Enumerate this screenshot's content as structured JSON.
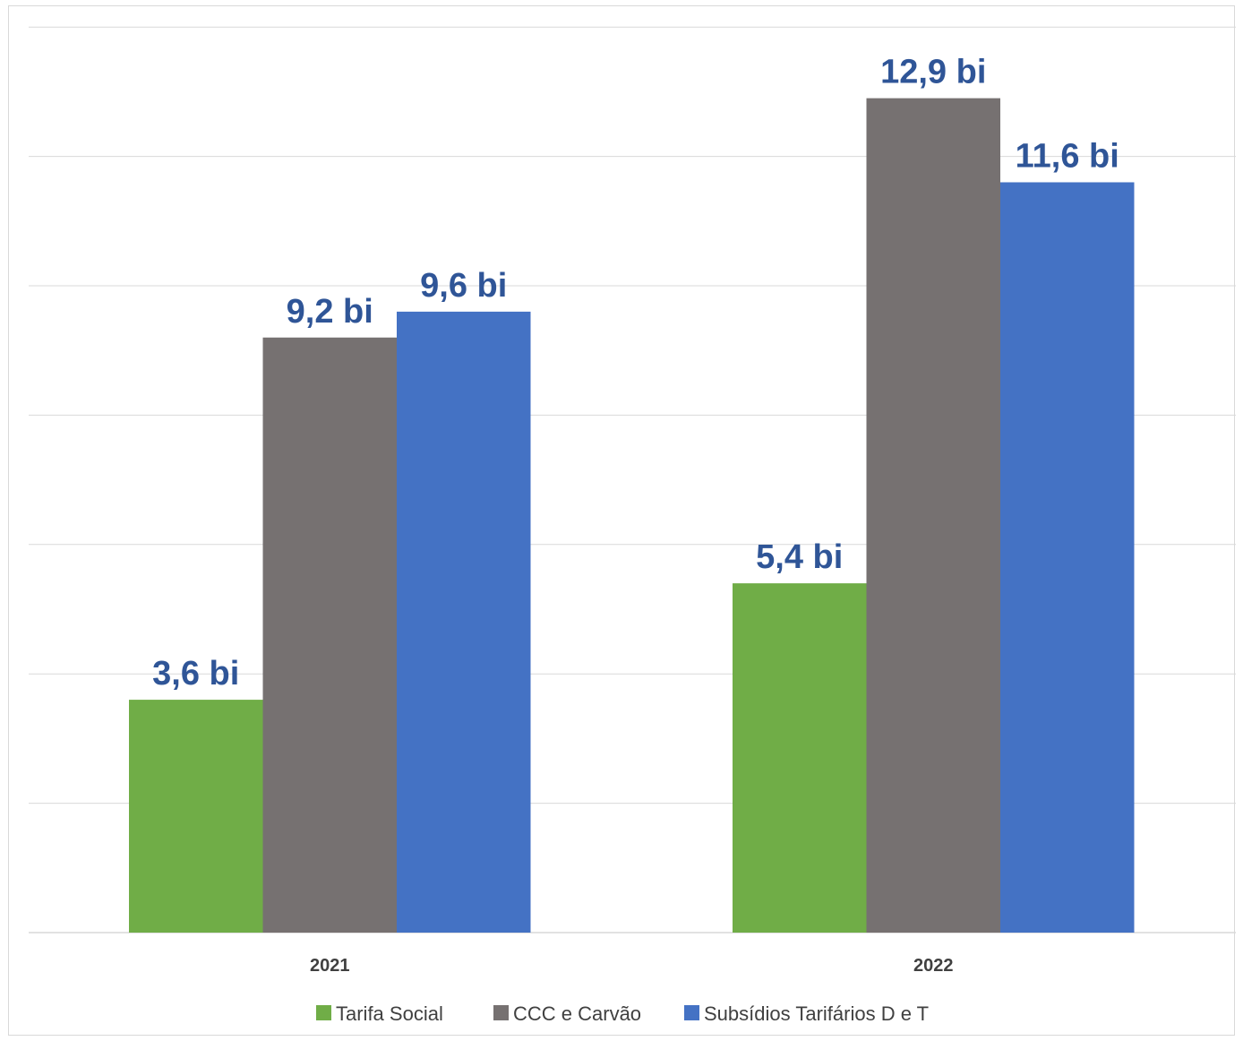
{
  "chart_data": {
    "type": "bar",
    "categories": [
      "2021",
      "2022"
    ],
    "series": [
      {
        "name": "Tarifa Social",
        "values": [
          3.6,
          5.4
        ],
        "labels": [
          "3,6 bi",
          "5,4 bi"
        ],
        "color": "#70ad47"
      },
      {
        "name": "CCC e Carvão",
        "values": [
          9.2,
          12.9
        ],
        "labels": [
          "9,2 bi",
          "12,9 bi"
        ],
        "color": "#767171"
      },
      {
        "name": "Subsídios Tarifários D e T",
        "values": [
          9.6,
          11.6
        ],
        "labels": [
          "9,6 bi",
          "11,6 bi"
        ],
        "color": "#4472c4"
      }
    ],
    "ylim": [
      0,
      14
    ],
    "grid": true,
    "legend_position": "bottom",
    "data_label_color": "#2f5597",
    "gridline_color": "#d9d9d9"
  }
}
